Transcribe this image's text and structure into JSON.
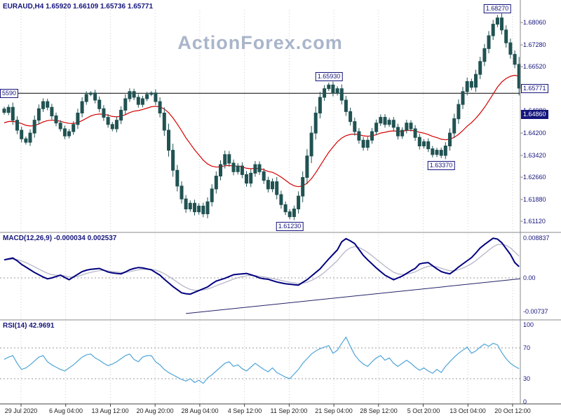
{
  "header": {
    "title": "EURAUD,H4 1.65920 1.66109 1.65736 1.65771",
    "watermark": "ActionForex.com"
  },
  "colors": {
    "candle": "#215252",
    "ma": "#d40000",
    "macd": "#000080",
    "macd_signal": "#b6b6c9",
    "rsi": "#4fa5d8",
    "navy": "#15157d",
    "grid": "#cfcfcf"
  },
  "chart_data": [
    {
      "type": "candlestick",
      "symbol": "EURAUD",
      "timeframe": "H4",
      "current_ohlc": {
        "open": "1.65920",
        "high": "1.66109",
        "low": "1.65736",
        "close": "1.65771"
      },
      "y_range": [
        1.6078,
        1.6848
      ],
      "y_ticks": [
        "1.68060",
        "1.67280",
        "1.66520",
        "1.65740",
        "1.64980",
        "1.64200",
        "1.63420",
        "1.62660",
        "1.61880",
        "1.61120"
      ],
      "hline": {
        "price": 1.6559,
        "left_label": "5590"
      },
      "right_labels": [
        {
          "text": "1.65771",
          "price": 1.65771,
          "style": "outline"
        },
        {
          "text": "1.64860",
          "price": 1.6486,
          "style": "filled"
        }
      ],
      "annotations": [
        {
          "text": "1.68270",
          "index": 114,
          "side": "above"
        },
        {
          "text": "1.65930",
          "index": 75,
          "side": "above"
        },
        {
          "text": "1.63370",
          "index": 101,
          "side": "below"
        },
        {
          "text": "1.61230",
          "index": 66,
          "side": "below"
        }
      ],
      "closes": [
        1.6492,
        1.651,
        1.6465,
        1.643,
        1.64,
        1.6388,
        1.642,
        1.6465,
        1.6505,
        1.653,
        1.651,
        1.648,
        1.6455,
        1.6435,
        1.641,
        1.6425,
        1.645,
        1.649,
        1.653,
        1.6555,
        1.656,
        1.6535,
        1.6505,
        1.6475,
        1.645,
        1.6435,
        1.6465,
        1.65,
        1.654,
        1.6565,
        1.6545,
        1.652,
        1.654,
        1.6555,
        1.656,
        1.653,
        1.649,
        1.643,
        1.636,
        1.629,
        1.6235,
        1.619,
        1.6155,
        1.6175,
        1.6145,
        1.6165,
        1.6138,
        1.618,
        1.6225,
        1.627,
        1.631,
        1.6345,
        1.6315,
        1.6285,
        1.6305,
        1.6275,
        1.6245,
        1.628,
        1.631,
        1.6285,
        1.6255,
        1.6225,
        1.625,
        1.6205,
        1.617,
        1.6145,
        1.6128,
        1.6155,
        1.62,
        1.6265,
        1.634,
        1.642,
        1.649,
        1.6545,
        1.6575,
        1.6588,
        1.656,
        1.6575,
        1.6535,
        1.6495,
        1.646,
        1.6425,
        1.6395,
        1.637,
        1.6395,
        1.6425,
        1.6455,
        1.6475,
        1.645,
        1.6465,
        1.644,
        1.641,
        1.643,
        1.6455,
        1.6435,
        1.6405,
        1.6375,
        1.639,
        1.6365,
        1.6345,
        1.636,
        1.6342,
        1.6375,
        1.642,
        1.647,
        1.652,
        1.6565,
        1.66,
        1.658,
        1.6625,
        1.667,
        1.6715,
        1.676,
        1.68,
        1.6822,
        1.678,
        1.6735,
        1.6695,
        1.666,
        1.6577
      ]
    },
    {
      "type": "line",
      "title": "MACD(12,26,9) -0.000034 0.002537",
      "y_range": [
        -0.00853,
        0.00915
      ],
      "y_ticks": [
        "0.008837",
        "0.00",
        "-0.00737"
      ],
      "trendline": {
        "from": {
          "index": 42,
          "value": -0.0079
        },
        "to": {
          "index": 119,
          "value": -0.0002
        }
      },
      "values": [
        0.004,
        0.0042,
        0.0044,
        0.0038,
        0.003,
        0.0024,
        0.0018,
        0.0012,
        0.0007,
        0.0002,
        -0.0002,
        0.0,
        0.0003,
        0.0006,
        0.0001,
        -0.0004,
        0.0002,
        0.0008,
        0.0014,
        0.0017,
        0.0019,
        0.002,
        0.0021,
        0.0017,
        0.0013,
        0.0011,
        0.001,
        0.0009,
        0.0013,
        0.0018,
        0.0021,
        0.0023,
        0.0022,
        0.002,
        0.0018,
        0.0012,
        0.0006,
        -0.0003,
        -0.0011,
        -0.0019,
        -0.0026,
        -0.0033,
        -0.0035,
        -0.0036,
        -0.0032,
        -0.0028,
        -0.0024,
        -0.002,
        -0.0013,
        -0.0007,
        -0.0004,
        -0.0001,
        0.0003,
        0.0007,
        0.0008,
        0.0009,
        0.001,
        0.0007,
        0.0004,
        0.0,
        -0.0002,
        -0.0003,
        -0.0006,
        -0.0009,
        -0.0011,
        -0.0013,
        -0.0014,
        -0.0015,
        -0.0016,
        -0.001,
        -0.0004,
        0.0004,
        0.0012,
        0.002,
        0.0031,
        0.0042,
        0.0052,
        0.0062,
        0.008,
        0.0087,
        0.0082,
        0.0076,
        0.0063,
        0.005,
        0.004,
        0.0031,
        0.0022,
        0.0014,
        0.0006,
        0.0001,
        -0.0004,
        0.0,
        0.0004,
        0.001,
        0.0016,
        0.0021,
        0.0031,
        0.0033,
        0.0034,
        0.0027,
        0.002,
        0.0014,
        0.0011,
        0.0009,
        0.0016,
        0.0024,
        0.0031,
        0.0038,
        0.0045,
        0.0055,
        0.0066,
        0.0074,
        0.0081,
        0.0088,
        0.0086,
        0.0078,
        0.0065,
        0.0052,
        0.0034,
        0.0025
      ]
    },
    {
      "type": "line",
      "title": "RSI(14) 42.9691",
      "y_range": [
        0,
        100
      ],
      "y_ticks": [
        "100",
        "70",
        "30",
        "0"
      ],
      "dotted_levels": [
        70,
        30
      ],
      "values": [
        55,
        58,
        60,
        50,
        42,
        44,
        48,
        53,
        58,
        60,
        52,
        48,
        45,
        42,
        40,
        44,
        48,
        53,
        58,
        61,
        62,
        57,
        54,
        50,
        47,
        49,
        52,
        56,
        60,
        62,
        55,
        52,
        58,
        60,
        60,
        52,
        48,
        42,
        38,
        35,
        32,
        29,
        27,
        30,
        25,
        28,
        24,
        31,
        35,
        40,
        45,
        50,
        52,
        46,
        48,
        43,
        40,
        45,
        50,
        46,
        42,
        39,
        44,
        38,
        35,
        32,
        30,
        36,
        42,
        50,
        56,
        62,
        66,
        69,
        71,
        73,
        63,
        67,
        76,
        84,
        72,
        61,
        54,
        49,
        46,
        52,
        57,
        60,
        54,
        57,
        50,
        46,
        50,
        54,
        50,
        45,
        41,
        44,
        40,
        37,
        42,
        38,
        46,
        52,
        58,
        63,
        67,
        71,
        63,
        66,
        71,
        75,
        72,
        76,
        74,
        64,
        56,
        50,
        46,
        43
      ]
    }
  ],
  "x_axis": {
    "labels": [
      "29 Jul 2020",
      "6 Aug 04:00",
      "13 Aug 12:00",
      "20 Aug 20:00",
      "28 Aug 04:00",
      "4 Sep 12:00",
      "11 Sep 20:00",
      "21 Sep 04:00",
      "28 Sep 12:00",
      "5 Oct 20:00",
      "13 Oct 04:00",
      "20 Oct 12:00"
    ]
  }
}
